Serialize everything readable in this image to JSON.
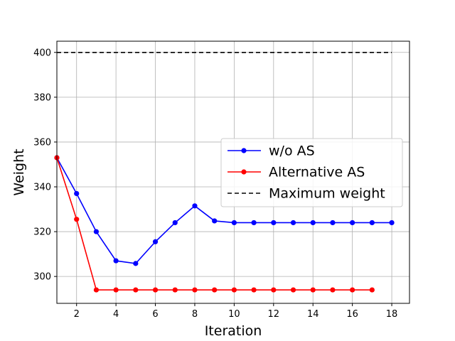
{
  "chart_data": {
    "type": "line",
    "title": "",
    "xlabel": "Iteration",
    "ylabel": "Weight",
    "xlim": [
      1,
      18.9
    ],
    "ylim": [
      288,
      405
    ],
    "xticks": [
      2,
      4,
      6,
      8,
      10,
      12,
      14,
      16,
      18
    ],
    "yticks": [
      300,
      320,
      340,
      360,
      380,
      400
    ],
    "grid": true,
    "legend_position": "center-right",
    "series": [
      {
        "name": "w/o AS",
        "color": "#0000ff",
        "marker": "circle",
        "linestyle": "solid",
        "x": [
          1,
          2,
          3,
          4,
          5,
          6,
          7,
          8,
          9,
          10,
          11,
          12,
          13,
          14,
          15,
          16,
          17,
          18
        ],
        "y": [
          353,
          337,
          320,
          307,
          305.8,
          315.5,
          324,
          331.5,
          324.8,
          324,
          324,
          324,
          324,
          324,
          324,
          324,
          324,
          324
        ]
      },
      {
        "name": "Alternative AS",
        "color": "#ff0000",
        "marker": "circle",
        "linestyle": "solid",
        "x": [
          1,
          2,
          3,
          4,
          5,
          6,
          7,
          8,
          9,
          10,
          11,
          12,
          13,
          14,
          15,
          16,
          17
        ],
        "y": [
          353,
          325.5,
          294,
          294,
          294,
          294,
          294,
          294,
          294,
          294,
          294,
          294,
          294,
          294,
          294,
          294,
          294
        ]
      },
      {
        "name": "Maximum weight",
        "color": "#000000",
        "marker": "none",
        "linestyle": "dashed",
        "x": [
          1,
          18
        ],
        "y": [
          400,
          400
        ]
      }
    ]
  }
}
